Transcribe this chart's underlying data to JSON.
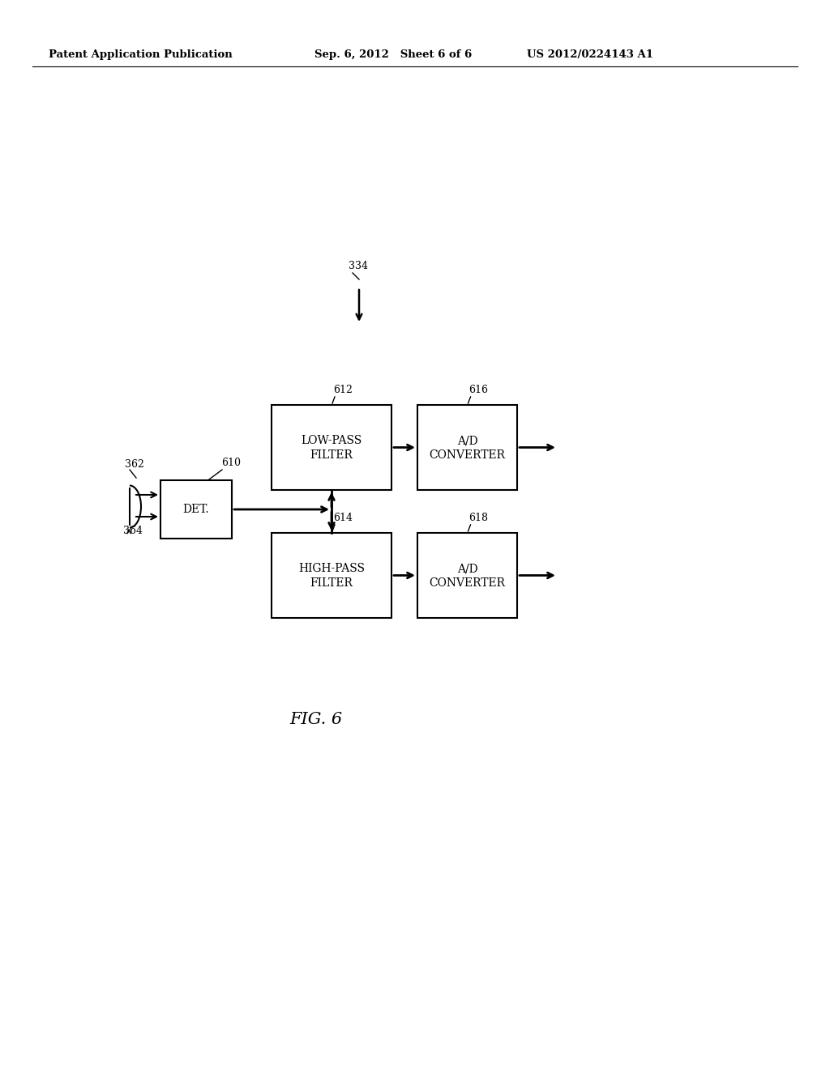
{
  "bg_color": "#ffffff",
  "header_left": "Patent Application Publication",
  "header_center": "Sep. 6, 2012   Sheet 6 of 6",
  "header_right": "US 2012/0224143 A1",
  "fig_label": "FIG. 6",
  "label_334": "334",
  "label_610": "610",
  "label_362": "362",
  "label_364": "364",
  "label_612": "612",
  "label_614": "614",
  "label_616": "616",
  "label_618": "618",
  "box_det_text": "DET.",
  "box_lpf_line1": "LOW-PASS",
  "box_lpf_line2": "FILTER",
  "box_hpf_line1": "HIGH-PASS",
  "box_hpf_line2": "FILTER",
  "box_adc1_line1": "A/D",
  "box_adc1_line2": "CONVERTER",
  "box_adc2_line1": "A/D",
  "box_adc2_line2": "CONVERTER"
}
